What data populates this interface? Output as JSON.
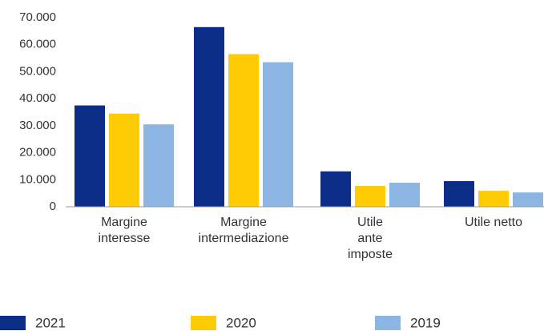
{
  "chart_data": {
    "type": "bar",
    "categories": [
      "Margine\ninteresse",
      "Margine\nintermediazione",
      "Utile\nante\nimposte",
      "Utile netto"
    ],
    "series": [
      {
        "name": "2021",
        "color": "#0b2d87",
        "values": [
          37500,
          66500,
          13100,
          9500
        ]
      },
      {
        "name": "2020",
        "color": "#ffcb05",
        "values": [
          34500,
          56500,
          7700,
          5900
        ]
      },
      {
        "name": "2019",
        "color": "#8db5e3",
        "values": [
          30500,
          53500,
          8900,
          5300
        ]
      }
    ],
    "ylim": [
      0,
      70000
    ],
    "yticks": [
      {
        "value": 0,
        "label": "0"
      },
      {
        "value": 10000,
        "label": "10.000"
      },
      {
        "value": 20000,
        "label": "20.000"
      },
      {
        "value": 30000,
        "label": "30.000"
      },
      {
        "value": 40000,
        "label": "40.000"
      },
      {
        "value": 50000,
        "label": "50.000"
      },
      {
        "value": 60000,
        "label": "60.000"
      },
      {
        "value": 70000,
        "label": "70.000"
      }
    ],
    "grid": false,
    "legend": "bottom"
  }
}
